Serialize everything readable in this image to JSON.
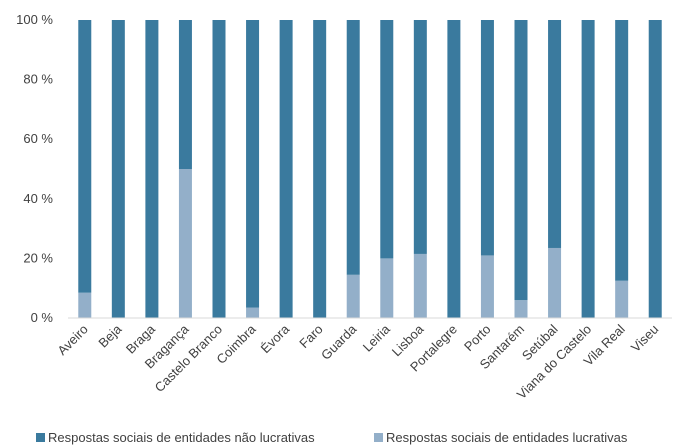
{
  "chart_data": {
    "type": "bar",
    "stacked": true,
    "categories": [
      "Aveiro",
      "Beja",
      "Braga",
      "Bragança",
      "Castelo Branco",
      "Coimbra",
      "Évora",
      "Faro",
      "Guarda",
      "Leiria",
      "Lisboa",
      "Portalegre",
      "Porto",
      "Santarém",
      "Setúbal",
      "Viana do Castelo",
      "Vila Real",
      "Viseu"
    ],
    "series": [
      {
        "name": "Respostas sociais de entidades lucrativas",
        "color": "#93afc9",
        "values": [
          8.5,
          0,
          0,
          50,
          0,
          3.5,
          0,
          0,
          14.5,
          20,
          21.5,
          0,
          21,
          6,
          23.5,
          0,
          12.5,
          0
        ]
      },
      {
        "name": "Respostas sociais de entidades não lucrativas",
        "color": "#3a7a9e",
        "values": [
          91.5,
          100,
          100,
          50,
          100,
          96.5,
          100,
          100,
          85.5,
          80,
          78.5,
          100,
          79,
          94,
          76.5,
          100,
          87.5,
          100
        ]
      }
    ],
    "yticks": [
      "0 %",
      "20 %",
      "40 %",
      "60 %",
      "80 %",
      "100 %"
    ],
    "ylim": [
      0,
      100
    ],
    "grid": false,
    "legend_position": "bottom",
    "legend": [
      "Respostas sociais de entidades não lucrativas",
      "Respostas sociais de entidades lucrativas"
    ]
  }
}
